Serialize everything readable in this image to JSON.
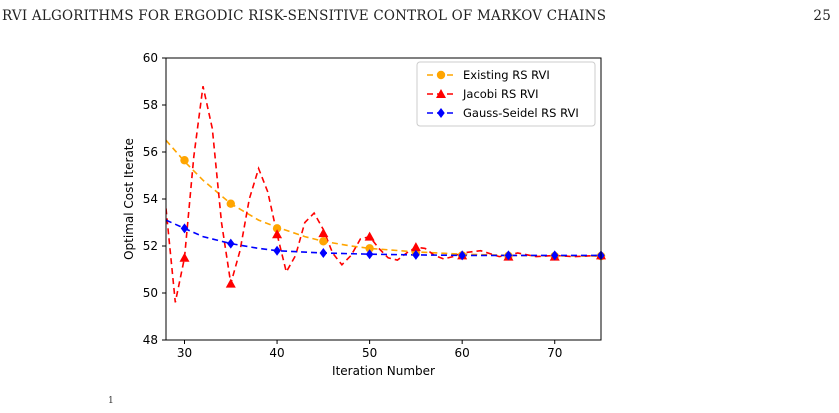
{
  "header": {
    "title": "RVI ALGORITHMS FOR ERGODIC RISK-SENSITIVE CONTROL OF MARKOV CHAINS",
    "page_number": "25"
  },
  "footer_mark": "1",
  "colors": {
    "existing": "#FFA500",
    "jacobi": "#FF0000",
    "gauss_seidel": "#0000FF",
    "axis": "#000000"
  },
  "chart_data": {
    "type": "line",
    "title": "",
    "xlabel": "Iteration Number",
    "ylabel": "Optimal Cost Iterate",
    "xlim": [
      28,
      75
    ],
    "ylim": [
      48,
      60
    ],
    "x_ticks": [
      "30",
      "40",
      "50",
      "60",
      "70"
    ],
    "y_ticks": [
      "48",
      "50",
      "52",
      "54",
      "56",
      "58",
      "60"
    ],
    "grid": false,
    "legend_position": "top-right",
    "series": [
      {
        "name": "Existing RS RVI",
        "color": "#FFA500",
        "marker": "circle",
        "line": "dashed",
        "line_x": [
          28,
          30,
          32,
          35,
          38,
          40,
          43,
          45,
          48,
          50,
          55,
          60,
          65,
          70,
          75
        ],
        "line_y": [
          56.5,
          55.6,
          54.8,
          53.8,
          53.1,
          52.8,
          52.4,
          52.2,
          52.0,
          51.9,
          51.75,
          51.65,
          51.6,
          51.58,
          51.57
        ],
        "marker_x": [
          30,
          35,
          40,
          45,
          50,
          55,
          60,
          65,
          70,
          75
        ],
        "marker_y": [
          55.65,
          53.8,
          52.75,
          52.2,
          51.9,
          51.7,
          51.6,
          51.58,
          51.57,
          51.57
        ]
      },
      {
        "name": "Jacobi RS RVI",
        "color": "#FF0000",
        "marker": "triangle",
        "line": "dashed",
        "line_x": [
          28,
          29,
          30,
          31,
          32,
          33,
          34,
          35,
          36,
          37,
          38,
          39,
          40,
          41,
          42,
          43,
          44,
          45,
          46,
          47,
          48,
          49,
          50,
          51,
          52,
          53,
          54,
          55,
          56,
          57,
          58,
          59,
          60,
          62,
          64,
          66,
          68,
          70,
          72,
          75
        ],
        "line_y": [
          53.6,
          49.6,
          51.5,
          55.8,
          58.8,
          57.0,
          53.0,
          50.4,
          51.8,
          54.0,
          55.3,
          54.3,
          52.5,
          50.9,
          51.6,
          53.0,
          53.4,
          52.7,
          51.7,
          51.2,
          51.6,
          52.3,
          52.4,
          51.9,
          51.5,
          51.4,
          51.7,
          51.95,
          51.9,
          51.6,
          51.45,
          51.55,
          51.7,
          51.8,
          51.55,
          51.7,
          51.55,
          51.6,
          51.55,
          51.6
        ],
        "marker_x": [
          30,
          35,
          40,
          45,
          50,
          55,
          60,
          65,
          70,
          75
        ],
        "marker_y": [
          51.5,
          50.4,
          52.5,
          52.55,
          52.4,
          51.95,
          51.6,
          51.55,
          51.55,
          51.6
        ]
      },
      {
        "name": "Gauss-Seidel RS RVI",
        "color": "#0000FF",
        "marker": "diamond",
        "line": "dashed",
        "line_x": [
          28,
          30,
          32,
          35,
          38,
          40,
          45,
          50,
          55,
          60,
          65,
          70,
          75
        ],
        "line_y": [
          53.1,
          52.75,
          52.4,
          52.1,
          51.9,
          51.8,
          51.7,
          51.65,
          51.62,
          51.6,
          51.6,
          51.6,
          51.6
        ],
        "marker_x": [
          30,
          35,
          40,
          45,
          50,
          55,
          60,
          65,
          70,
          75
        ],
        "marker_y": [
          52.75,
          52.1,
          51.8,
          51.7,
          51.65,
          51.62,
          51.6,
          51.6,
          51.6,
          51.6
        ]
      }
    ]
  }
}
